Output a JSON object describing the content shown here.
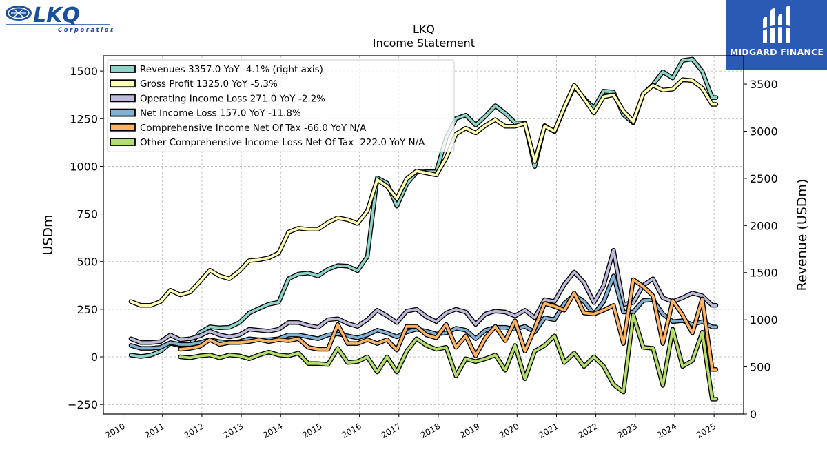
{
  "header": {
    "left_logo_text": "LKQ",
    "left_logo_subtext": "Corporation",
    "right_logo_text": "MIDGARD FINANCE"
  },
  "chart_data": {
    "type": "line",
    "title": "LKQ",
    "subtitle": "Income Statement",
    "ylabel": "USDm",
    "ylabel_right": "Revenue (USDm)",
    "ylim": [
      -300,
      1580
    ],
    "ylim_right": [
      0,
      3800
    ],
    "yticks": [
      -250,
      0,
      250,
      500,
      750,
      1000,
      1250,
      1500
    ],
    "yticks_right": [
      0,
      500,
      1000,
      1500,
      2000,
      2500,
      3000,
      3500
    ],
    "xlim": [
      2009.5,
      2025.75
    ],
    "xticks": [
      "2010",
      "2011",
      "2012",
      "2013",
      "2014",
      "2015",
      "2016",
      "2017",
      "2018",
      "2019",
      "2020",
      "2021",
      "2022",
      "2023",
      "2024",
      "2025"
    ],
    "grid": true,
    "legend_position": "top-left",
    "series": [
      {
        "name": "Revenues",
        "legend": "Revenues  3357.0 YoY -4.1% (right axis)",
        "color": "#8dd3c7",
        "axis": "right",
        "x": [
          2010.2,
          2010.45,
          2010.7,
          2010.95,
          2011.2,
          2011.45,
          2011.7,
          2011.95,
          2012.2,
          2012.45,
          2012.7,
          2012.95,
          2013.2,
          2013.45,
          2013.7,
          2013.95,
          2014.2,
          2014.45,
          2014.7,
          2014.95,
          2015.2,
          2015.45,
          2015.7,
          2015.95,
          2016.2,
          2016.45,
          2016.7,
          2016.95,
          2017.2,
          2017.45,
          2017.7,
          2017.95,
          2018.2,
          2018.45,
          2018.7,
          2018.95,
          2019.2,
          2019.45,
          2019.7,
          2019.95,
          2020.2,
          2020.45,
          2020.7,
          2020.95,
          2021.2,
          2021.45,
          2021.7,
          2021.95,
          2022.2,
          2022.45,
          2022.7,
          2022.95,
          2023.2,
          2023.45,
          2023.7,
          2023.95,
          2024.2,
          2024.45,
          2024.7,
          2024.95,
          2025.05
        ],
        "values": [
          625,
          610,
          625,
          665,
          750,
          725,
          740,
          865,
          925,
          915,
          920,
          970,
          1070,
          1120,
          1165,
          1185,
          1435,
          1485,
          1495,
          1465,
          1535,
          1575,
          1570,
          1520,
          1670,
          2505,
          2450,
          2205,
          2440,
          2565,
          2570,
          2570,
          2930,
          3135,
          3170,
          3065,
          3160,
          3270,
          3190,
          3090,
          3085,
          2625,
          3060,
          2995,
          3245,
          3475,
          3350,
          3245,
          3425,
          3415,
          3175,
          3090,
          3395,
          3495,
          3630,
          3565,
          3750,
          3765,
          3635,
          3357,
          3357
        ]
      },
      {
        "name": "Gross Profit",
        "legend": "Gross Profit  1325.0 YoY -5.3%",
        "color": "#ffffb3",
        "axis": "left",
        "x": [
          2010.2,
          2010.45,
          2010.7,
          2010.95,
          2011.2,
          2011.45,
          2011.7,
          2011.95,
          2012.2,
          2012.45,
          2012.7,
          2012.95,
          2013.2,
          2013.45,
          2013.7,
          2013.95,
          2014.2,
          2014.45,
          2014.7,
          2014.95,
          2015.2,
          2015.45,
          2015.7,
          2015.95,
          2016.2,
          2016.45,
          2016.7,
          2016.95,
          2017.2,
          2017.45,
          2017.7,
          2017.95,
          2018.2,
          2018.45,
          2018.7,
          2018.95,
          2019.2,
          2019.45,
          2019.7,
          2019.95,
          2020.2,
          2020.45,
          2020.7,
          2020.95,
          2021.2,
          2021.45,
          2021.7,
          2021.95,
          2022.2,
          2022.45,
          2022.7,
          2022.95,
          2023.2,
          2023.45,
          2023.7,
          2023.95,
          2024.2,
          2024.45,
          2024.7,
          2024.95,
          2025.05
        ],
        "values": [
          290,
          270,
          270,
          290,
          350,
          325,
          340,
          395,
          455,
          425,
          410,
          450,
          505,
          510,
          520,
          545,
          655,
          675,
          670,
          670,
          705,
          730,
          720,
          700,
          765,
          930,
          895,
          830,
          935,
          975,
          965,
          955,
          1045,
          1170,
          1200,
          1175,
          1215,
          1245,
          1210,
          1210,
          1225,
          1025,
          1210,
          1185,
          1310,
          1425,
          1355,
          1280,
          1365,
          1375,
          1290,
          1235,
          1380,
          1425,
          1400,
          1405,
          1455,
          1450,
          1410,
          1325,
          1325
        ]
      },
      {
        "name": "Operating Income Loss",
        "legend": "Operating Income Loss  271.0 YoY -2.2%",
        "color": "#bebada",
        "axis": "left",
        "x": [
          2010.2,
          2010.45,
          2010.7,
          2010.95,
          2011.2,
          2011.45,
          2011.7,
          2011.95,
          2012.2,
          2012.45,
          2012.7,
          2012.95,
          2013.2,
          2013.45,
          2013.7,
          2013.95,
          2014.2,
          2014.45,
          2014.7,
          2014.95,
          2015.2,
          2015.45,
          2015.7,
          2015.95,
          2016.2,
          2016.45,
          2016.7,
          2016.95,
          2017.2,
          2017.45,
          2017.7,
          2017.95,
          2018.2,
          2018.45,
          2018.7,
          2018.95,
          2019.2,
          2019.45,
          2019.7,
          2019.95,
          2020.2,
          2020.45,
          2020.7,
          2020.95,
          2021.2,
          2021.45,
          2021.7,
          2021.95,
          2022.2,
          2022.45,
          2022.7,
          2022.95,
          2023.2,
          2023.45,
          2023.7,
          2023.95,
          2024.2,
          2024.45,
          2024.7,
          2024.95,
          2025.05
        ],
        "values": [
          95,
          75,
          75,
          80,
          115,
          90,
          95,
          110,
          135,
          115,
          105,
          115,
          145,
          140,
          135,
          145,
          180,
          180,
          165,
          155,
          195,
          200,
          175,
          160,
          195,
          245,
          215,
          180,
          240,
          250,
          210,
          185,
          230,
          250,
          235,
          170,
          225,
          240,
          235,
          215,
          245,
          205,
          300,
          290,
          380,
          445,
          390,
          285,
          375,
          560,
          275,
          285,
          375,
          410,
          310,
          290,
          310,
          335,
          320,
          271,
          271
        ]
      },
      {
        "name": "Net Income Loss",
        "legend": "Net Income Loss  157.0 YoY -11.8%",
        "color": "#80b1d3",
        "axis": "left",
        "x": [
          2010.2,
          2010.45,
          2010.7,
          2010.95,
          2011.2,
          2011.45,
          2011.7,
          2011.95,
          2012.2,
          2012.45,
          2012.7,
          2012.95,
          2013.2,
          2013.45,
          2013.7,
          2013.95,
          2014.2,
          2014.45,
          2014.7,
          2014.95,
          2015.2,
          2015.45,
          2015.7,
          2015.95,
          2016.2,
          2016.45,
          2016.7,
          2016.95,
          2017.2,
          2017.45,
          2017.7,
          2017.95,
          2018.2,
          2018.45,
          2018.7,
          2018.95,
          2019.2,
          2019.45,
          2019.7,
          2019.95,
          2020.2,
          2020.45,
          2020.7,
          2020.95,
          2021.2,
          2021.45,
          2021.7,
          2021.95,
          2022.2,
          2022.45,
          2022.7,
          2022.95,
          2023.2,
          2023.45,
          2023.7,
          2023.95,
          2024.2,
          2024.45,
          2024.7,
          2024.95,
          2025.05
        ],
        "values": [
          60,
          45,
          45,
          50,
          75,
          65,
          65,
          75,
          90,
          80,
          75,
          80,
          95,
          90,
          90,
          95,
          115,
          115,
          105,
          95,
          115,
          120,
          110,
          100,
          115,
          140,
          125,
          105,
          130,
          145,
          135,
          120,
          125,
          150,
          140,
          95,
          140,
          155,
          155,
          145,
          160,
          130,
          205,
          195,
          280,
          325,
          290,
          225,
          290,
          425,
          235,
          235,
          295,
          300,
          225,
          185,
          190,
          170,
          185,
          157,
          157
        ]
      },
      {
        "name": "Comprehensive Income Net Of Tax",
        "legend": "Comprehensive Income Net Of Tax  -66.0 YoY N/A",
        "color": "#fdb462",
        "axis": "left",
        "x": [
          2011.45,
          2011.7,
          2011.95,
          2012.2,
          2012.45,
          2012.7,
          2012.95,
          2013.2,
          2013.45,
          2013.7,
          2013.95,
          2014.2,
          2014.45,
          2014.7,
          2014.95,
          2015.2,
          2015.45,
          2015.7,
          2015.95,
          2016.2,
          2016.45,
          2016.7,
          2016.95,
          2017.2,
          2017.45,
          2017.7,
          2017.95,
          2018.2,
          2018.45,
          2018.7,
          2018.95,
          2019.2,
          2019.45,
          2019.7,
          2019.95,
          2020.2,
          2020.45,
          2020.7,
          2020.95,
          2021.2,
          2021.45,
          2021.7,
          2021.95,
          2022.2,
          2022.45,
          2022.7,
          2022.95,
          2023.2,
          2023.45,
          2023.7,
          2023.95,
          2024.2,
          2024.45,
          2024.7,
          2024.95,
          2025.05
        ],
        "values": [
          40,
          45,
          55,
          90,
          65,
          75,
          75,
          80,
          90,
          80,
          90,
          85,
          95,
          50,
          40,
          40,
          170,
          70,
          70,
          90,
          70,
          90,
          35,
          160,
          160,
          115,
          100,
          170,
          50,
          110,
          5,
          100,
          160,
          85,
          190,
          30,
          150,
          280,
          265,
          245,
          335,
          230,
          225,
          245,
          270,
          70,
          405,
          370,
          320,
          70,
          295,
          220,
          125,
          305,
          -66,
          -66
        ]
      },
      {
        "name": "Other Comprehensive Income Loss Net Of Tax",
        "legend": "Other Comprehensive Income Loss Net Of Tax  -222.0 YoY N/A",
        "color": "#b3de69",
        "axis": "left",
        "x": [
          2011.45,
          2011.7,
          2011.95,
          2012.2,
          2012.45,
          2012.7,
          2012.95,
          2013.2,
          2013.45,
          2013.7,
          2013.95,
          2014.2,
          2014.45,
          2014.7,
          2014.95,
          2015.2,
          2015.45,
          2015.7,
          2015.95,
          2016.2,
          2016.45,
          2016.7,
          2016.95,
          2017.2,
          2017.45,
          2017.7,
          2017.95,
          2018.2,
          2018.45,
          2018.7,
          2018.95,
          2019.2,
          2019.45,
          2019.7,
          2019.95,
          2020.2,
          2020.45,
          2020.7,
          2020.95,
          2021.2,
          2021.45,
          2021.7,
          2021.95,
          2022.2,
          2022.45,
          2022.7,
          2022.95,
          2023.2,
          2023.45,
          2023.7,
          2023.95,
          2024.2,
          2024.45,
          2024.7,
          2024.95,
          2025.05
        ],
        "values": [
          0,
          -5,
          5,
          10,
          -5,
          10,
          5,
          -10,
          10,
          25,
          10,
          5,
          20,
          -35,
          -35,
          -40,
          45,
          -30,
          -25,
          0,
          -80,
          0,
          -80,
          30,
          95,
          60,
          40,
          50,
          -100,
          -10,
          -25,
          -10,
          10,
          -70,
          60,
          -115,
          30,
          60,
          110,
          -30,
          20,
          -50,
          0,
          -50,
          -145,
          -185,
          220,
          50,
          45,
          -150,
          145,
          -50,
          -20,
          130,
          -222,
          -222
        ]
      }
    ]
  }
}
